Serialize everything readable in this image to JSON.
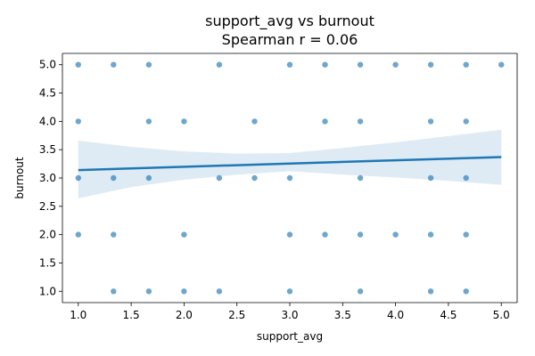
{
  "chart_data": {
    "type": "scatter",
    "title": "support_avg vs burnout",
    "subtitle": "Spearman r = 0.06",
    "xlabel": "support_avg",
    "ylabel": "burnout",
    "xlim": [
      0.85,
      5.15
    ],
    "ylim": [
      0.8,
      5.2
    ],
    "x_ticks": [
      "1.0",
      "1.5",
      "2.0",
      "2.5",
      "3.0",
      "3.5",
      "4.0",
      "4.5",
      "5.0"
    ],
    "y_ticks": [
      "1.0",
      "1.5",
      "2.0",
      "2.5",
      "3.0",
      "3.5",
      "4.0",
      "4.5",
      "5.0"
    ],
    "grid": false,
    "points": [
      [
        1.0,
        5.0
      ],
      [
        1.333,
        5.0
      ],
      [
        1.667,
        5.0
      ],
      [
        2.333,
        5.0
      ],
      [
        3.0,
        5.0
      ],
      [
        3.333,
        5.0
      ],
      [
        3.667,
        5.0
      ],
      [
        4.0,
        5.0
      ],
      [
        4.333,
        5.0
      ],
      [
        4.667,
        5.0
      ],
      [
        5.0,
        5.0
      ],
      [
        1.0,
        4.0
      ],
      [
        1.667,
        4.0
      ],
      [
        2.0,
        4.0
      ],
      [
        2.667,
        4.0
      ],
      [
        3.333,
        4.0
      ],
      [
        3.667,
        4.0
      ],
      [
        4.333,
        4.0
      ],
      [
        4.667,
        4.0
      ],
      [
        1.0,
        3.0
      ],
      [
        1.333,
        3.0
      ],
      [
        1.667,
        3.0
      ],
      [
        2.333,
        3.0
      ],
      [
        2.667,
        3.0
      ],
      [
        3.0,
        3.0
      ],
      [
        3.667,
        3.0
      ],
      [
        4.333,
        3.0
      ],
      [
        4.667,
        3.0
      ],
      [
        1.0,
        2.0
      ],
      [
        1.333,
        2.0
      ],
      [
        2.0,
        2.0
      ],
      [
        3.0,
        2.0
      ],
      [
        3.333,
        2.0
      ],
      [
        3.667,
        2.0
      ],
      [
        4.0,
        2.0
      ],
      [
        4.333,
        2.0
      ],
      [
        4.667,
        2.0
      ],
      [
        1.333,
        1.0
      ],
      [
        1.667,
        1.0
      ],
      [
        2.0,
        1.0
      ],
      [
        2.333,
        1.0
      ],
      [
        3.0,
        1.0
      ],
      [
        3.667,
        1.0
      ],
      [
        4.333,
        1.0
      ],
      [
        4.667,
        1.0
      ]
    ],
    "regression": {
      "x": [
        1.0,
        5.0
      ],
      "y": [
        3.14,
        3.37
      ],
      "ci_x": [
        1.0,
        1.5,
        2.0,
        2.5,
        3.0,
        3.5,
        4.0,
        4.5,
        5.0
      ],
      "ci_upper": [
        3.66,
        3.55,
        3.47,
        3.43,
        3.44,
        3.53,
        3.63,
        3.74,
        3.85
      ],
      "ci_lower": [
        2.64,
        2.84,
        2.97,
        3.06,
        3.12,
        3.06,
        3.01,
        2.95,
        2.88
      ]
    },
    "colors": {
      "series": "#1f77b4"
    }
  }
}
